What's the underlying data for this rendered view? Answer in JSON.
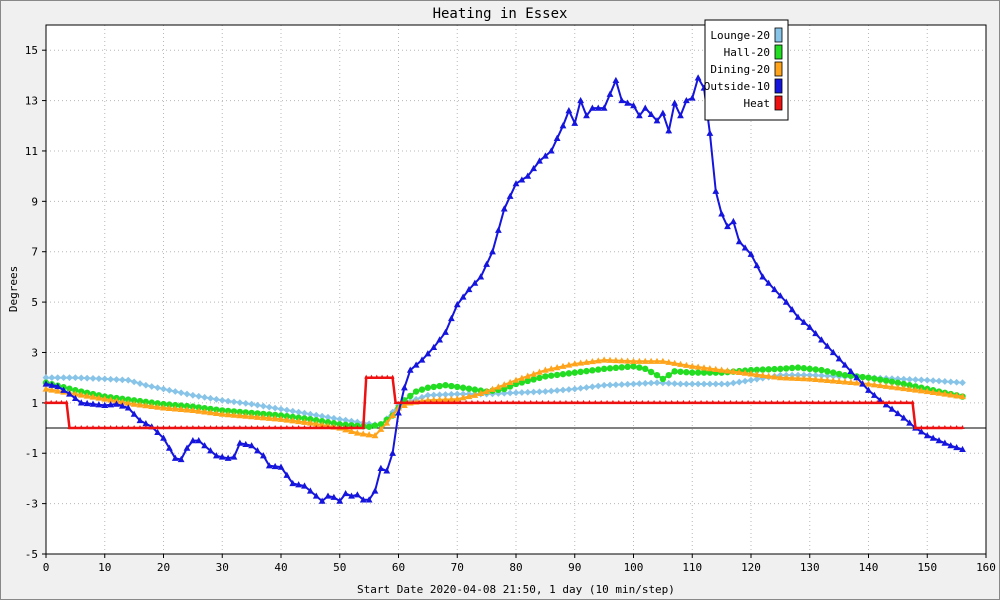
{
  "chart_data": {
    "type": "line",
    "title": "Heating in Essex",
    "xlabel": "Start Date 2020-04-08 21:50, 1 day (10 min/step)",
    "ylabel": "Degrees",
    "xlim": [
      0,
      160
    ],
    "ylim": [
      -5,
      16
    ],
    "xticks": [
      0,
      10,
      20,
      30,
      40,
      50,
      60,
      70,
      80,
      90,
      100,
      110,
      120,
      130,
      140,
      150,
      160
    ],
    "yticks": [
      -5,
      -3,
      -1,
      1,
      3,
      5,
      7,
      9,
      11,
      13,
      15
    ],
    "grid": true,
    "legend_position": "top-right",
    "zero_line": true,
    "series": [
      {
        "name": "Lounge-20",
        "color": "#87c4e8",
        "marker": "diamond",
        "points": [
          [
            0,
            2.0
          ],
          [
            5,
            2.0
          ],
          [
            10,
            1.95
          ],
          [
            14,
            1.9
          ],
          [
            17,
            1.7
          ],
          [
            20,
            1.55
          ],
          [
            25,
            1.3
          ],
          [
            30,
            1.1
          ],
          [
            35,
            0.95
          ],
          [
            40,
            0.75
          ],
          [
            45,
            0.55
          ],
          [
            50,
            0.35
          ],
          [
            54,
            0.2
          ],
          [
            57,
            0.1
          ],
          [
            60,
            0.9
          ],
          [
            65,
            1.3
          ],
          [
            70,
            1.35
          ],
          [
            75,
            1.35
          ],
          [
            80,
            1.4
          ],
          [
            85,
            1.45
          ],
          [
            90,
            1.55
          ],
          [
            95,
            1.7
          ],
          [
            100,
            1.75
          ],
          [
            104,
            1.8
          ],
          [
            108,
            1.75
          ],
          [
            112,
            1.75
          ],
          [
            116,
            1.75
          ],
          [
            120,
            1.9
          ],
          [
            125,
            2.1
          ],
          [
            130,
            2.1
          ],
          [
            135,
            2.05
          ],
          [
            140,
            2.0
          ],
          [
            145,
            1.95
          ],
          [
            150,
            1.9
          ],
          [
            156,
            1.8
          ]
        ]
      },
      {
        "name": "Hall-20",
        "color": "#22dd22",
        "marker": "circle",
        "points": [
          [
            0,
            1.8
          ],
          [
            5,
            1.5
          ],
          [
            10,
            1.25
          ],
          [
            15,
            1.1
          ],
          [
            20,
            0.95
          ],
          [
            25,
            0.85
          ],
          [
            30,
            0.7
          ],
          [
            35,
            0.6
          ],
          [
            40,
            0.5
          ],
          [
            45,
            0.35
          ],
          [
            50,
            0.15
          ],
          [
            55,
            0.05
          ],
          [
            57,
            0.15
          ],
          [
            59,
            0.5
          ],
          [
            61,
            1.1
          ],
          [
            63,
            1.45
          ],
          [
            65,
            1.6
          ],
          [
            68,
            1.7
          ],
          [
            71,
            1.6
          ],
          [
            75,
            1.45
          ],
          [
            78,
            1.55
          ],
          [
            80,
            1.75
          ],
          [
            85,
            2.05
          ],
          [
            90,
            2.2
          ],
          [
            95,
            2.35
          ],
          [
            100,
            2.45
          ],
          [
            102,
            2.35
          ],
          [
            104,
            2.1
          ],
          [
            105,
            1.95
          ],
          [
            107,
            2.25
          ],
          [
            110,
            2.2
          ],
          [
            115,
            2.2
          ],
          [
            120,
            2.3
          ],
          [
            125,
            2.35
          ],
          [
            128,
            2.4
          ],
          [
            132,
            2.3
          ],
          [
            136,
            2.1
          ],
          [
            140,
            2.0
          ],
          [
            145,
            1.8
          ],
          [
            150,
            1.55
          ],
          [
            153,
            1.4
          ],
          [
            156,
            1.25
          ]
        ]
      },
      {
        "name": "Dining-20",
        "color": "#ffa31a",
        "marker": "triangle",
        "points": [
          [
            0,
            1.55
          ],
          [
            5,
            1.35
          ],
          [
            10,
            1.15
          ],
          [
            15,
            0.95
          ],
          [
            20,
            0.8
          ],
          [
            25,
            0.7
          ],
          [
            30,
            0.55
          ],
          [
            35,
            0.45
          ],
          [
            40,
            0.35
          ],
          [
            45,
            0.2
          ],
          [
            50,
            0.0
          ],
          [
            53,
            -0.2
          ],
          [
            56,
            -0.3
          ],
          [
            58,
            0.2
          ],
          [
            60,
            0.8
          ],
          [
            62,
            1.0
          ],
          [
            65,
            1.1
          ],
          [
            70,
            1.15
          ],
          [
            73,
            1.3
          ],
          [
            75,
            1.45
          ],
          [
            80,
            1.9
          ],
          [
            85,
            2.3
          ],
          [
            90,
            2.55
          ],
          [
            95,
            2.7
          ],
          [
            100,
            2.65
          ],
          [
            105,
            2.65
          ],
          [
            110,
            2.45
          ],
          [
            115,
            2.3
          ],
          [
            120,
            2.15
          ],
          [
            125,
            2.0
          ],
          [
            130,
            1.95
          ],
          [
            135,
            1.85
          ],
          [
            140,
            1.75
          ],
          [
            145,
            1.6
          ],
          [
            150,
            1.45
          ],
          [
            153,
            1.35
          ],
          [
            156,
            1.25
          ]
        ]
      },
      {
        "name": "Outside-10",
        "color": "#1515dd",
        "marker": "triangle",
        "points": [
          [
            0,
            1.75
          ],
          [
            2,
            1.65
          ],
          [
            4,
            1.35
          ],
          [
            6,
            1.0
          ],
          [
            8,
            0.95
          ],
          [
            10,
            0.9
          ],
          [
            12,
            0.95
          ],
          [
            14,
            0.8
          ],
          [
            16,
            0.3
          ],
          [
            18,
            0.05
          ],
          [
            20,
            -0.4
          ],
          [
            22,
            -1.2
          ],
          [
            23,
            -1.25
          ],
          [
            24,
            -0.8
          ],
          [
            25,
            -0.5
          ],
          [
            26,
            -0.5
          ],
          [
            27,
            -0.7
          ],
          [
            29,
            -1.1
          ],
          [
            31,
            -1.2
          ],
          [
            32,
            -1.15
          ],
          [
            33,
            -0.6
          ],
          [
            35,
            -0.7
          ],
          [
            37,
            -1.1
          ],
          [
            38,
            -1.5
          ],
          [
            40,
            -1.55
          ],
          [
            42,
            -2.2
          ],
          [
            44,
            -2.3
          ],
          [
            46,
            -2.7
          ],
          [
            47,
            -2.9
          ],
          [
            48,
            -2.7
          ],
          [
            49,
            -2.75
          ],
          [
            50,
            -2.9
          ],
          [
            51,
            -2.6
          ],
          [
            52,
            -2.7
          ],
          [
            53,
            -2.65
          ],
          [
            54,
            -2.85
          ],
          [
            55,
            -2.85
          ],
          [
            56,
            -2.5
          ],
          [
            57,
            -1.6
          ],
          [
            58,
            -1.7
          ],
          [
            59,
            -1.0
          ],
          [
            60,
            0.6
          ],
          [
            61,
            1.6
          ],
          [
            62,
            2.3
          ],
          [
            64,
            2.7
          ],
          [
            66,
            3.2
          ],
          [
            68,
            3.8
          ],
          [
            70,
            4.9
          ],
          [
            72,
            5.5
          ],
          [
            74,
            6.0
          ],
          [
            76,
            7.0
          ],
          [
            78,
            8.7
          ],
          [
            80,
            9.7
          ],
          [
            82,
            10.0
          ],
          [
            84,
            10.6
          ],
          [
            86,
            11.0
          ],
          [
            88,
            12.0
          ],
          [
            89,
            12.6
          ],
          [
            90,
            12.1
          ],
          [
            91,
            13.0
          ],
          [
            92,
            12.4
          ],
          [
            93,
            12.7
          ],
          [
            95,
            12.7
          ],
          [
            97,
            13.8
          ],
          [
            98,
            13.0
          ],
          [
            100,
            12.8
          ],
          [
            101,
            12.4
          ],
          [
            102,
            12.7
          ],
          [
            104,
            12.2
          ],
          [
            105,
            12.5
          ],
          [
            106,
            11.8
          ],
          [
            107,
            12.9
          ],
          [
            108,
            12.4
          ],
          [
            109,
            13.0
          ],
          [
            110,
            13.1
          ],
          [
            111,
            13.9
          ],
          [
            112,
            13.5
          ],
          [
            113,
            11.7
          ],
          [
            114,
            9.4
          ],
          [
            115,
            8.5
          ],
          [
            116,
            8.0
          ],
          [
            117,
            8.2
          ],
          [
            118,
            7.4
          ],
          [
            120,
            6.9
          ],
          [
            122,
            6.0
          ],
          [
            124,
            5.5
          ],
          [
            126,
            5.0
          ],
          [
            128,
            4.4
          ],
          [
            130,
            4.0
          ],
          [
            132,
            3.5
          ],
          [
            134,
            3.0
          ],
          [
            136,
            2.5
          ],
          [
            138,
            2.0
          ],
          [
            140,
            1.5
          ],
          [
            142,
            1.1
          ],
          [
            144,
            0.75
          ],
          [
            146,
            0.4
          ],
          [
            148,
            0.0
          ],
          [
            150,
            -0.3
          ],
          [
            152,
            -0.5
          ],
          [
            154,
            -0.7
          ],
          [
            156,
            -0.85
          ]
        ]
      },
      {
        "name": "Heat",
        "color": "#ee1111",
        "marker": "tee",
        "points": [
          [
            0,
            1.0
          ],
          [
            3.5,
            1.0
          ],
          [
            4,
            0.0
          ],
          [
            54,
            0.0
          ],
          [
            54.5,
            2.0
          ],
          [
            59,
            2.0
          ],
          [
            59.5,
            1.0
          ],
          [
            147.5,
            1.0
          ],
          [
            148,
            0.0
          ],
          [
            156,
            0.0
          ]
        ]
      }
    ]
  }
}
